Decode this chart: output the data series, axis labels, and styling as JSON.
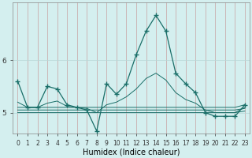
{
  "xlabel": "Humidex (Indice chaleur)",
  "background_color": "#d4efef",
  "grid_color_v": "#c8a8a8",
  "grid_color_h": "#b8d8d8",
  "line_color": "#1a6e68",
  "x_values": [
    0,
    1,
    2,
    3,
    4,
    5,
    6,
    7,
    8,
    9,
    10,
    11,
    12,
    13,
    14,
    15,
    16,
    17,
    18,
    19,
    20,
    21,
    22,
    23
  ],
  "y_main": [
    5.6,
    5.1,
    5.1,
    5.5,
    5.45,
    5.15,
    5.1,
    5.05,
    4.65,
    5.55,
    5.35,
    5.55,
    6.1,
    6.55,
    6.85,
    6.55,
    5.75,
    5.55,
    5.38,
    5.0,
    4.93,
    4.93,
    4.93,
    5.15
  ],
  "y_flat1": [
    5.1,
    5.1,
    5.1,
    5.1,
    5.1,
    5.1,
    5.1,
    5.1,
    5.1,
    5.1,
    5.1,
    5.1,
    5.1,
    5.1,
    5.1,
    5.1,
    5.1,
    5.1,
    5.1,
    5.1,
    5.1,
    5.1,
    5.1,
    5.15
  ],
  "y_flat2": [
    5.05,
    5.05,
    5.05,
    5.05,
    5.05,
    5.05,
    5.05,
    5.05,
    5.05,
    5.05,
    5.05,
    5.05,
    5.05,
    5.05,
    5.05,
    5.05,
    5.05,
    5.05,
    5.05,
    5.05,
    5.05,
    5.05,
    5.05,
    5.08
  ],
  "y_flat3": [
    5.0,
    5.0,
    5.0,
    5.0,
    5.0,
    5.0,
    5.0,
    5.0,
    5.0,
    5.0,
    5.0,
    5.0,
    5.0,
    5.0,
    5.0,
    5.0,
    5.0,
    5.0,
    5.0,
    5.0,
    5.0,
    5.0,
    5.0,
    5.03
  ],
  "y_smooth": [
    5.2,
    5.1,
    5.1,
    5.18,
    5.22,
    5.12,
    5.1,
    5.08,
    5.0,
    5.15,
    5.2,
    5.3,
    5.45,
    5.65,
    5.75,
    5.62,
    5.38,
    5.25,
    5.18,
    5.05,
    5.0,
    5.0,
    5.0,
    5.1
  ],
  "ylim": [
    4.6,
    7.1
  ],
  "yticks": [
    5,
    6
  ],
  "xlim": [
    -0.5,
    23.5
  ],
  "tick_fontsize": 5.5,
  "xlabel_fontsize": 7
}
